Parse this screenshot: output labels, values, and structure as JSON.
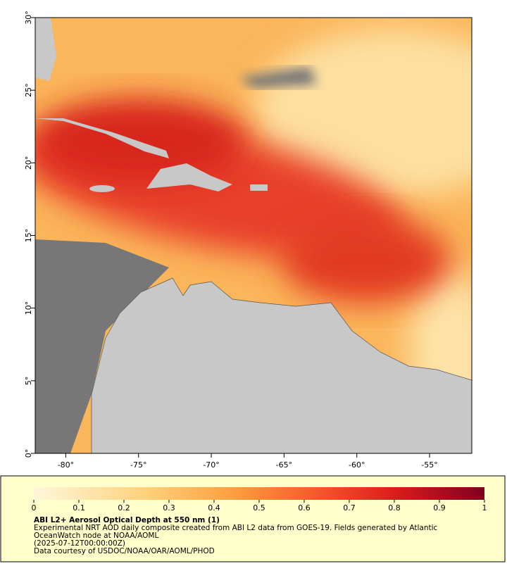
{
  "map": {
    "xlim": [
      -82.1,
      -52.1
    ],
    "ylim": [
      0,
      30
    ],
    "xticks": [
      {
        "value": -80,
        "label": "-80°"
      },
      {
        "value": -75,
        "label": "-75°"
      },
      {
        "value": -70,
        "label": "-70°"
      },
      {
        "value": -65,
        "label": "-65°"
      },
      {
        "value": -60,
        "label": "-60°"
      },
      {
        "value": -55,
        "label": "-55°"
      }
    ],
    "yticks": [
      {
        "value": 0,
        "label": "0°"
      },
      {
        "value": 5,
        "label": "5°"
      },
      {
        "value": 10,
        "label": "10°"
      },
      {
        "value": 15,
        "label": "15°"
      },
      {
        "value": 20,
        "label": "20°"
      },
      {
        "value": 25,
        "label": "25°"
      },
      {
        "value": 30,
        "label": "30°"
      }
    ]
  },
  "colorbar": {
    "range": [
      0,
      1
    ],
    "ticks": [
      0,
      0.1,
      0.2,
      0.3,
      0.4,
      0.5,
      0.6,
      0.7,
      0.8,
      0.9,
      1
    ]
  },
  "caption": {
    "title": "ABI L2+ Aerosol Optical Depth at 550 nm (1)",
    "lines": [
      "Experimental NRT AOD daily composite created from ABI L2 data from GOES-19. Fields generated by Atlantic",
      "OceanWatch node at NOAA/AOML",
      "(2025-07-12T00:00:00Z)",
      "Data courtesy of USDOC/NOAA/OAR/AOML/PHOD"
    ]
  }
}
